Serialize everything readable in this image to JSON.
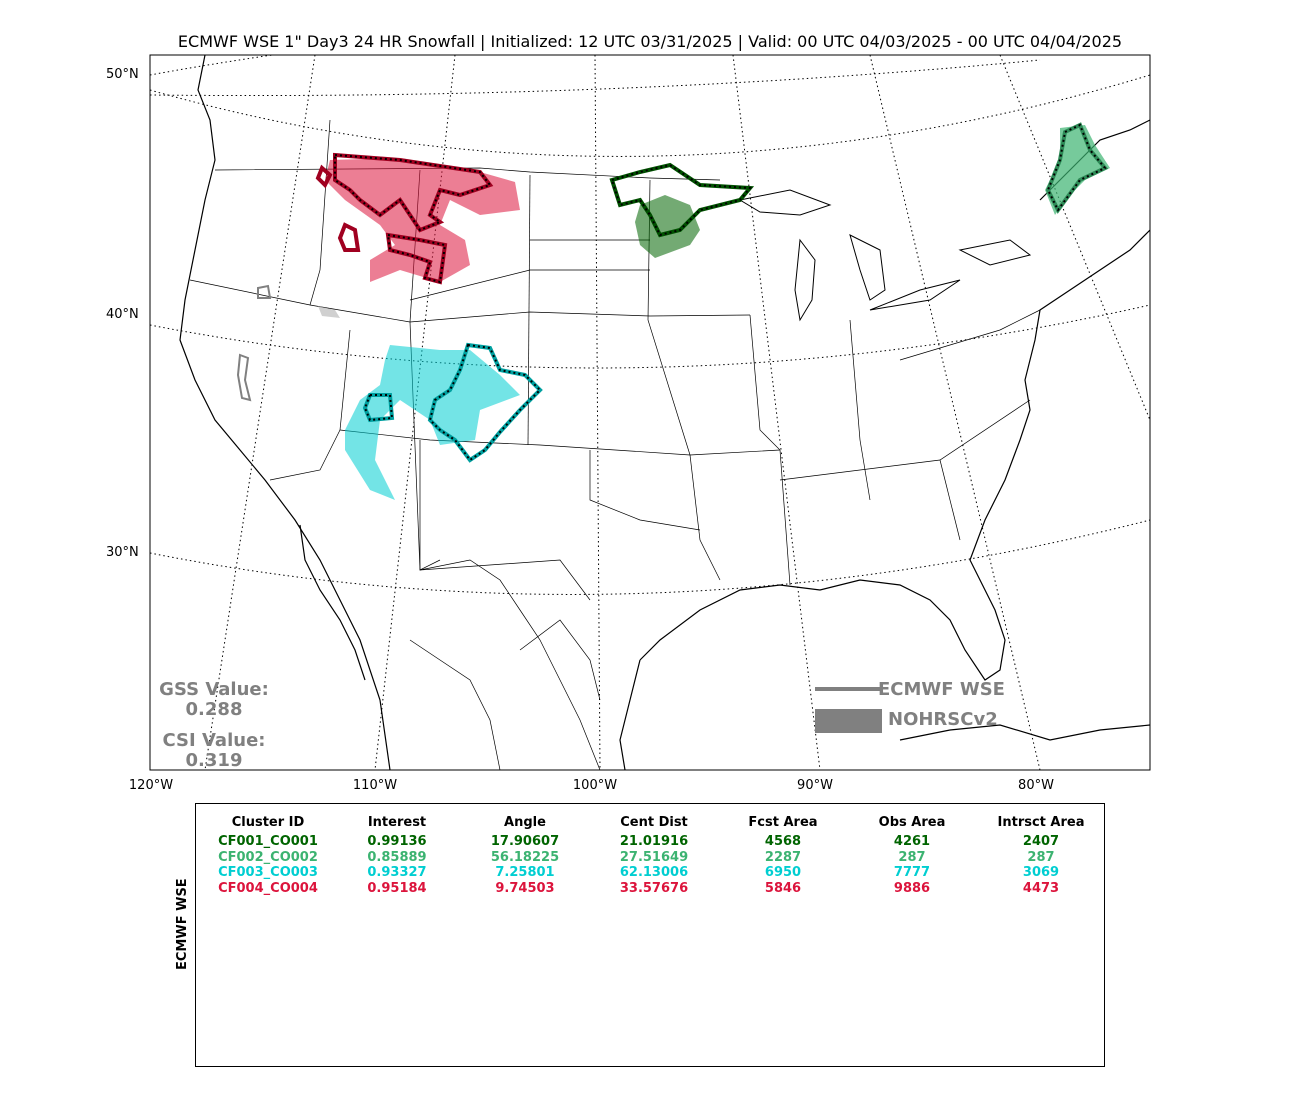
{
  "title": "ECMWF WSE 1\" Day3 24 HR Snowfall | Initialized: 12 UTC 03/31/2025 | Valid: 00 UTC 04/03/2025 - 00 UTC 04/04/2025",
  "map": {
    "lat_labels": [
      "50°N",
      "40°N",
      "30°N"
    ],
    "lon_labels": [
      "120°W",
      "110°W",
      "100°W",
      "90°W",
      "80°W"
    ]
  },
  "stats": {
    "gss_label": "GSS Value:",
    "gss_value": "0.288",
    "csi_label": "CSI Value:",
    "csi_value": "0.319"
  },
  "legend": {
    "forecast_label": "ECMWF WSE",
    "observed_label": "NOHRSCv2",
    "color": "#808080"
  },
  "table": {
    "side_label": "ECMWF WSE",
    "headers": [
      "Cluster ID",
      "Interest",
      "Angle",
      "Cent Dist",
      "Fcst Area",
      "Obs Area",
      "Intrsct Area"
    ],
    "rows": [
      {
        "color": "#006400",
        "cells": [
          "CF001_CO001",
          "0.99136",
          "17.90607",
          "21.01916",
          "4568",
          "4261",
          "2407"
        ]
      },
      {
        "color": "#3cb371",
        "cells": [
          "CF002_CO002",
          "0.85889",
          "56.18225",
          "27.51649",
          "2287",
          "287",
          "287"
        ]
      },
      {
        "color": "#00ced1",
        "cells": [
          "CF003_CO003",
          "0.93327",
          "7.25801",
          "62.13006",
          "6950",
          "7777",
          "3069"
        ]
      },
      {
        "color": "#dc143c",
        "cells": [
          "CF004_CO004",
          "0.95184",
          "9.74503",
          "33.57676",
          "5846",
          "9886",
          "4473"
        ]
      }
    ]
  }
}
